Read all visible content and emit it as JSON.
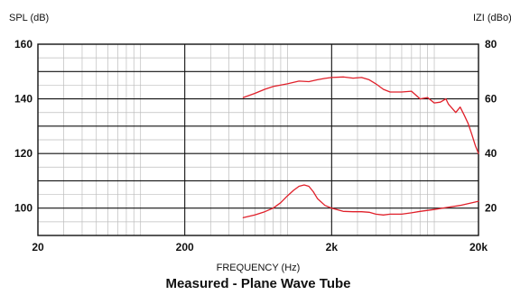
{
  "chart_data": {
    "type": "line",
    "title": "",
    "caption": "Measured - Plane Wave Tube",
    "xlabel": "FREQUENCY (Hz)",
    "ylabel_left": "SPL (dB)",
    "ylabel_right": "IZI (dBo)",
    "xscale": "log",
    "xlim": [
      20,
      20000
    ],
    "ylim_left": [
      90,
      160
    ],
    "ylim_right": [
      10,
      80
    ],
    "x_ticks": [
      {
        "value": 20,
        "label": "20"
      },
      {
        "value": 200,
        "label": "200"
      },
      {
        "value": 2000,
        "label": "2k"
      },
      {
        "value": 20000,
        "label": "20k"
      }
    ],
    "y_ticks_left": [
      {
        "value": 160,
        "label": "160"
      },
      {
        "value": 140,
        "label": "140"
      },
      {
        "value": 120,
        "label": "120"
      },
      {
        "value": 100,
        "label": "100"
      }
    ],
    "y_ticks_right": [
      {
        "value": 80,
        "label": "80"
      },
      {
        "value": 60,
        "label": "60"
      },
      {
        "value": 40,
        "label": "40"
      },
      {
        "value": 20,
        "label": "20"
      }
    ],
    "grid": true,
    "series": [
      {
        "axis": "left",
        "color": "#e0202a",
        "x": [
          500,
          600,
          700,
          800,
          1000,
          1200,
          1400,
          1600,
          1800,
          2000,
          2400,
          2800,
          3200,
          3600,
          4000,
          4500,
          5000,
          6000,
          7000,
          8000,
          9000,
          10000,
          11000,
          12000,
          12500,
          13000,
          14000,
          15000,
          16000,
          17000,
          18000,
          19000,
          20000
        ],
        "y": [
          140.5,
          142,
          143.5,
          144.5,
          145.5,
          146.5,
          146.3,
          147,
          147.5,
          147.8,
          148,
          147.6,
          147.8,
          147,
          145.5,
          143.5,
          142.5,
          142.5,
          142.8,
          140,
          140.5,
          138.5,
          138.8,
          140,
          138,
          137,
          135,
          137,
          134,
          131,
          127,
          123,
          120
        ]
      },
      {
        "axis": "right",
        "color": "#e0202a",
        "x": [
          500,
          600,
          700,
          800,
          900,
          1000,
          1100,
          1200,
          1300,
          1400,
          1500,
          1600,
          1800,
          2000,
          2400,
          2800,
          3200,
          3600,
          4000,
          4500,
          5000,
          6000,
          7000,
          8000,
          10000,
          12000,
          15000,
          20000
        ],
        "y": [
          16.5,
          17.5,
          18.7,
          20,
          22,
          24.5,
          26.5,
          28,
          28.5,
          28,
          26,
          23.5,
          21,
          20,
          18.8,
          18.7,
          18.7,
          18.5,
          17.8,
          17.5,
          17.8,
          17.8,
          18.3,
          18.8,
          19.5,
          20.2,
          21,
          22.5
        ]
      }
    ]
  }
}
